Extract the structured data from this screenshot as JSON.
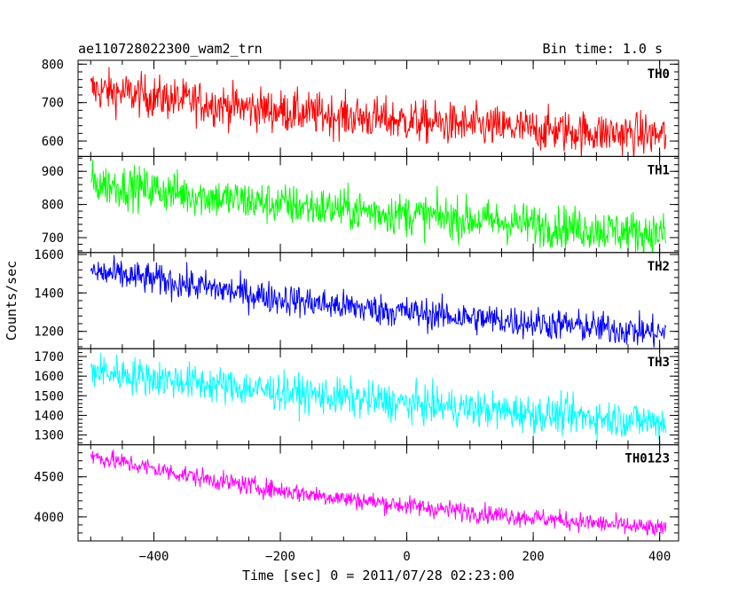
{
  "header": {
    "left_title": "ae110728022300_wam2_trn",
    "right_title": "Bin time: 1.0 s"
  },
  "chart_data": {
    "type": "line",
    "title": "ae110728022300_wam2_trn",
    "subtitle": "Bin time: 1.0 s",
    "xlabel": "Time [sec] 0 = 2011/07/28 02:23:00",
    "ylabel": "Counts/sec",
    "xlim": [
      -520,
      430
    ],
    "x_ticks": [
      -400,
      -200,
      0,
      200,
      400
    ],
    "x_tick_labels": [
      "−400",
      "−200",
      "0",
      "200",
      "400"
    ],
    "x_range": [
      -500,
      410
    ],
    "grid": false,
    "series": [
      {
        "name": "TH0",
        "color": "#ff0000",
        "ylim": [
          560,
          810
        ],
        "yticks": [
          600,
          700,
          800
        ],
        "trend": {
          "x": [
            -500,
            -400,
            -300,
            -200,
            -100,
            0,
            100,
            200,
            300,
            410
          ],
          "y": [
            735,
            715,
            695,
            678,
            665,
            652,
            640,
            630,
            622,
            615
          ]
        },
        "noise": 28
      },
      {
        "name": "TH1",
        "color": "#00ff00",
        "ylim": [
          655,
          945
        ],
        "yticks": [
          700,
          800,
          900
        ],
        "trend": {
          "x": [
            -500,
            -400,
            -300,
            -200,
            -100,
            0,
            100,
            200,
            300,
            410
          ],
          "y": [
            865,
            845,
            820,
            800,
            785,
            770,
            755,
            740,
            725,
            710
          ]
        },
        "noise": 32
      },
      {
        "name": "TH2",
        "color": "#0000ff",
        "ylim": [
          1110,
          1610
        ],
        "yticks": [
          1200,
          1400,
          1600
        ],
        "trend": {
          "x": [
            -500,
            -400,
            -300,
            -200,
            -100,
            0,
            100,
            200,
            300,
            410
          ],
          "y": [
            1510,
            1470,
            1420,
            1370,
            1330,
            1300,
            1270,
            1245,
            1220,
            1190
          ]
        },
        "noise": 42
      },
      {
        "name": "TH3",
        "color": "#00ffff",
        "ylim": [
          1250,
          1740
        ],
        "yticks": [
          1300,
          1400,
          1500,
          1600,
          1700
        ],
        "trend": {
          "x": [
            -500,
            -400,
            -300,
            -200,
            -100,
            0,
            100,
            200,
            300,
            410
          ],
          "y": [
            1630,
            1590,
            1555,
            1520,
            1490,
            1460,
            1435,
            1410,
            1390,
            1365
          ]
        },
        "noise": 48
      },
      {
        "name": "TH0123",
        "color": "#ff00ff",
        "ylim": [
          3700,
          4900
        ],
        "yticks": [
          4000,
          4500
        ],
        "trend": {
          "x": [
            -500,
            -400,
            -300,
            -200,
            -100,
            0,
            100,
            200,
            300,
            410
          ],
          "y": [
            4760,
            4600,
            4450,
            4330,
            4230,
            4140,
            4060,
            3990,
            3920,
            3840
          ]
        },
        "noise": 60
      }
    ]
  }
}
